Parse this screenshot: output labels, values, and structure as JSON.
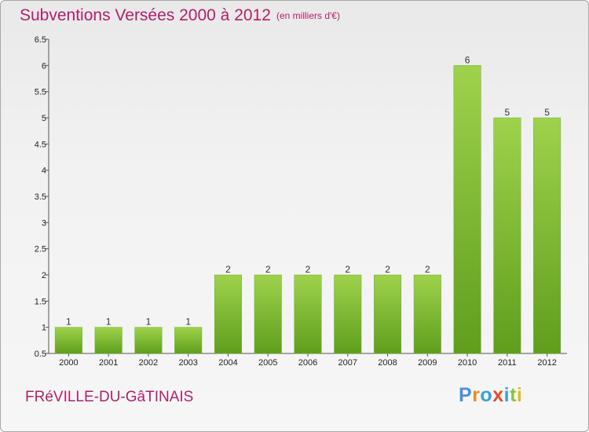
{
  "header": {
    "title": "Subventions Versées 2000 à 2012",
    "subtitle": "(en milliers d'€)"
  },
  "footer": {
    "commune": "FRéVILLE-DU-GâTINAIS",
    "logo_text": "Proxiti"
  },
  "colors": {
    "title": "#b0206a",
    "bar_top": "#9fd24c",
    "bar_bottom": "#5f9e1c"
  },
  "chart_data": {
    "type": "bar",
    "title": "Subventions Versées 2000 à 2012",
    "subtitle": "(en milliers d'€)",
    "xlabel": "",
    "ylabel": "",
    "categories": [
      "2000",
      "2001",
      "2002",
      "2003",
      "2004",
      "2005",
      "2006",
      "2007",
      "2008",
      "2009",
      "2010",
      "2011",
      "2012"
    ],
    "values": [
      1,
      1,
      1,
      1,
      2,
      2,
      2,
      2,
      2,
      2,
      6,
      5,
      5
    ],
    "data_labels": [
      "1",
      "1",
      "1",
      "1",
      "2",
      "2",
      "2",
      "2",
      "2",
      "2",
      "6",
      "5",
      "5"
    ],
    "ylim": [
      0.5,
      6.5
    ],
    "yticks": [
      "0.5",
      "1",
      "1.5",
      "2",
      "2.5",
      "3",
      "3.5",
      "4",
      "4.5",
      "5",
      "5.5",
      "6",
      "6.5"
    ],
    "grid": false,
    "legend": "none"
  }
}
